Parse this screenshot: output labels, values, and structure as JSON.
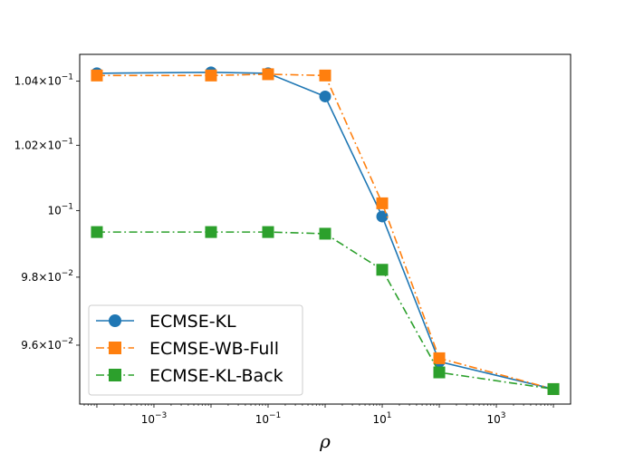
{
  "chart_data": {
    "type": "line",
    "title": "",
    "xlabel": "ρ",
    "ylabel": "",
    "x_scale": "log",
    "y_scale": "log",
    "x": [
      0.0001,
      0.01,
      0.1,
      1,
      10,
      100,
      10000
    ],
    "xlim": [
      5e-05,
      20000
    ],
    "ylim": [
      0.0943,
      0.10485
    ],
    "x_ticks": [
      {
        "value": 0.001,
        "base": "10",
        "exp": "−3"
      },
      {
        "value": 0.1,
        "base": "10",
        "exp": "−1"
      },
      {
        "value": 10,
        "base": "10",
        "exp": "1"
      },
      {
        "value": 1000,
        "base": "10",
        "exp": "3"
      }
    ],
    "y_ticks": [
      {
        "value": 0.096,
        "mantissa": "9.6",
        "base": "10",
        "exp": "−2"
      },
      {
        "value": 0.098,
        "mantissa": "9.8",
        "base": "10",
        "exp": "−2"
      },
      {
        "value": 0.1,
        "mantissa": "",
        "base": "10",
        "exp": "−1"
      },
      {
        "value": 0.102,
        "mantissa": "1.02",
        "base": "10",
        "exp": "−1"
      },
      {
        "value": 0.104,
        "mantissa": "1.04",
        "base": "10",
        "exp": "−1"
      }
    ],
    "grid": false,
    "legend_position": "lower-left",
    "series": [
      {
        "name": "ECMSE-KL",
        "color": "#1f77b4",
        "marker": "circle",
        "linestyle": "solid",
        "values": [
          0.10425,
          0.10428,
          0.10425,
          0.10352,
          0.09982,
          0.09552,
          0.09473
        ]
      },
      {
        "name": "ECMSE-WB-Full",
        "color": "#ff7f0e",
        "marker": "square",
        "linestyle": "dashdot",
        "values": [
          0.10418,
          0.10418,
          0.10422,
          0.10418,
          0.10022,
          0.09562,
          0.09473
        ]
      },
      {
        "name": "ECMSE-KL-Back",
        "color": "#2ca02c",
        "marker": "square",
        "linestyle": "dashdot",
        "values": [
          0.09935,
          0.09935,
          0.09935,
          0.0993,
          0.09822,
          0.09521,
          0.09473
        ]
      }
    ]
  }
}
